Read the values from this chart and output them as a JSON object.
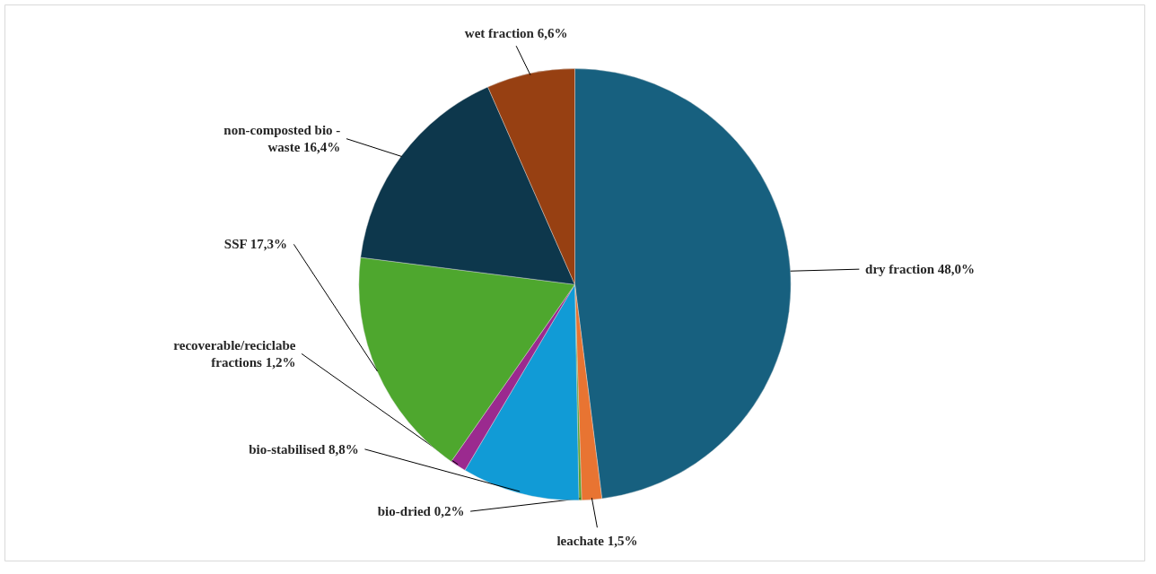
{
  "chart_data": {
    "type": "pie",
    "categories": [
      "dry fraction",
      "leachate",
      "bio-dried",
      "bio-stabilised",
      "recoverable/reciclabe fractions",
      "SSF",
      "non-composted bio - waste",
      "wet fraction"
    ],
    "values": [
      48.0,
      1.5,
      0.2,
      8.8,
      1.2,
      17.3,
      16.4,
      6.6
    ],
    "value_labels": [
      "48,0%",
      "1,5%",
      "0,2%",
      "8,8%",
      "1,2%",
      "17,3%",
      "16,4%",
      "6,6%"
    ],
    "colors": [
      "#17607f",
      "#e87432",
      "#5aa02c",
      "#119bd6",
      "#9b2a8f",
      "#4ea72e",
      "#0d374c",
      "#974012"
    ]
  }
}
